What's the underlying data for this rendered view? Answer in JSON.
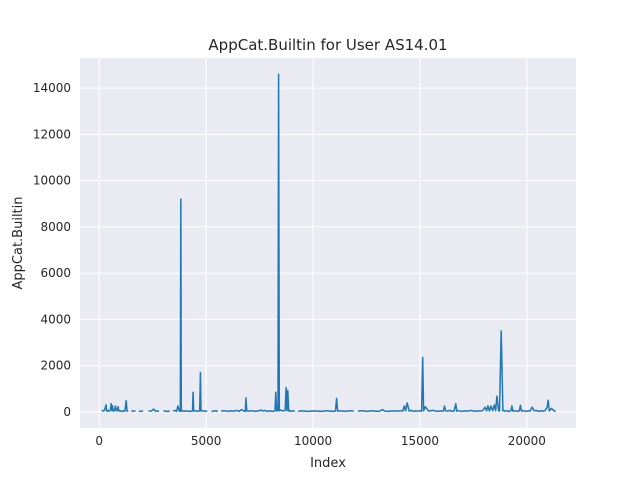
{
  "chart_data": {
    "type": "line",
    "title": "AppCat.Builtin for User AS14.01",
    "xlabel": "Index",
    "ylabel": "AppCat.Builtin",
    "xlim": [
      -900,
      22300
    ],
    "ylim": [
      -700,
      15300
    ],
    "xticks": [
      0,
      5000,
      10000,
      15000,
      20000
    ],
    "yticks": [
      0,
      2000,
      4000,
      6000,
      8000,
      10000,
      12000,
      14000
    ],
    "grid": true,
    "colors": {
      "background": "#eaeaf2",
      "grid": "#ffffff",
      "line": "#1f77b4"
    },
    "series": [
      {
        "segments": [
          {
            "x": [
              120,
              180,
              240,
              320,
              350,
              380,
              420,
              470,
              520,
              560,
              590,
              620,
              650,
              700,
              760,
              800,
              840,
              880,
              920,
              980,
              1050,
              1120,
              1200,
              1260,
              1300,
              1360
            ],
            "y": [
              80,
              30,
              60,
              300,
              40,
              20,
              60,
              30,
              80,
              350,
              50,
              260,
              40,
              30,
              250,
              40,
              60,
              220,
              30,
              50,
              20,
              40,
              30,
              480,
              40,
              20
            ]
          },
          {
            "x": [
              1500,
              1600,
              1700
            ],
            "y": [
              20,
              40,
              25
            ]
          },
          {
            "x": [
              1850,
              1950,
              2050
            ],
            "y": [
              30,
              20,
              40
            ]
          },
          {
            "x": [
              2300,
              2450,
              2550,
              2620,
              2700,
              2800
            ],
            "y": [
              30,
              40,
              120,
              30,
              40,
              20
            ]
          },
          {
            "x": [
              3000,
              3150,
              3300
            ],
            "y": [
              40,
              20,
              30
            ]
          },
          {
            "x": [
              3450,
              3550,
              3620,
              3680,
              3740,
              3790,
              3815,
              3840,
              3900,
              3960,
              4050,
              4150,
              4250,
              4360,
              4390,
              4420,
              4500,
              4600,
              4700,
              4730,
              4760,
              4850,
              4950,
              5050
            ],
            "y": [
              30,
              60,
              20,
              250,
              40,
              20,
              9200,
              30,
              50,
              20,
              40,
              30,
              20,
              40,
              850,
              30,
              50,
              20,
              40,
              1700,
              30,
              50,
              20,
              40
            ]
          },
          {
            "x": [
              5250,
              5350,
              5450,
              5550
            ],
            "y": [
              20,
              30,
              40,
              20
            ]
          },
          {
            "x": [
              5700,
              5850,
              6000,
              6150,
              6300,
              6450,
              6550,
              6650,
              6750,
              6830,
              6860,
              6900,
              7000,
              7150,
              7300,
              7450,
              7550,
              7650,
              7750,
              7850,
              7950,
              8050,
              8150,
              8220,
              8260,
              8300,
              8360,
              8390,
              8420,
              8500,
              8600,
              8700,
              8740,
              8780,
              8820,
              8860,
              8900,
              8950,
              9050,
              9150
            ],
            "y": [
              30,
              50,
              20,
              40,
              30,
              60,
              20,
              100,
              40,
              20,
              600,
              40,
              30,
              50,
              20,
              40,
              80,
              30,
              60,
              20,
              40,
              30,
              20,
              50,
              850,
              30,
              60,
              14600,
              40,
              80,
              30,
              60,
              1050,
              40,
              920,
              30,
              60,
              20,
              40,
              30
            ]
          },
          {
            "x": [
              9300,
              9450,
              9600,
              9800,
              10000,
              10200,
              10400,
              10600,
              10800,
              10950,
              11050,
              11100,
              11150,
              11300,
              11500,
              11700,
              11900
            ],
            "y": [
              20,
              40,
              30,
              20,
              40,
              30,
              20,
              50,
              30,
              20,
              40,
              580,
              30,
              40,
              20,
              50,
              30
            ]
          },
          {
            "x": [
              12100,
              12300,
              12500,
              12700,
              12900,
              13100,
              13250,
              13350,
              13500,
              13700,
              13900,
              14100,
              14200,
              14270,
              14330,
              14400,
              14500,
              14600,
              14700,
              14800,
              14900,
              15000,
              15080,
              15130,
              15170,
              15250,
              15400,
              15600,
              15800,
              16000,
              16100,
              16150,
              16200,
              16300,
              16400,
              16500,
              16600,
              16680,
              16720,
              16800,
              16950,
              17100,
              17250,
              17400,
              17550,
              17700,
              17850,
              17950,
              18050,
              18120,
              18180,
              18250,
              18320,
              18400,
              18480,
              18540,
              18600,
              18680,
              18720,
              18800,
              18880,
              18920,
              18980,
              19050,
              19150,
              19250,
              19300,
              19350,
              19450,
              19550,
              19650,
              19700,
              19750,
              19850,
              19950,
              20050,
              20150,
              20250,
              20350,
              20450,
              20550,
              20650,
              20750,
              20850,
              20950,
              21000,
              21050,
              21150,
              21250,
              21350
            ],
            "y": [
              30,
              50,
              20,
              40,
              30,
              20,
              100,
              30,
              20,
              40,
              30,
              50,
              30,
              250,
              40,
              380,
              30,
              60,
              20,
              40,
              30,
              50,
              20,
              2350,
              40,
              220,
              30,
              60,
              20,
              40,
              30,
              250,
              40,
              30,
              60,
              20,
              40,
              350,
              30,
              50,
              20,
              40,
              30,
              60,
              20,
              40,
              30,
              60,
              200,
              40,
              260,
              30,
              250,
              50,
              300,
              40,
              680,
              50,
              30,
              3500,
              40,
              60,
              30,
              50,
              20,
              40,
              250,
              30,
              50,
              20,
              40,
              280,
              30,
              50,
              20,
              40,
              30,
              200,
              40,
              60,
              20,
              40,
              30,
              50,
              200,
              500,
              40,
              150,
              60,
              20
            ]
          }
        ]
      }
    ]
  }
}
